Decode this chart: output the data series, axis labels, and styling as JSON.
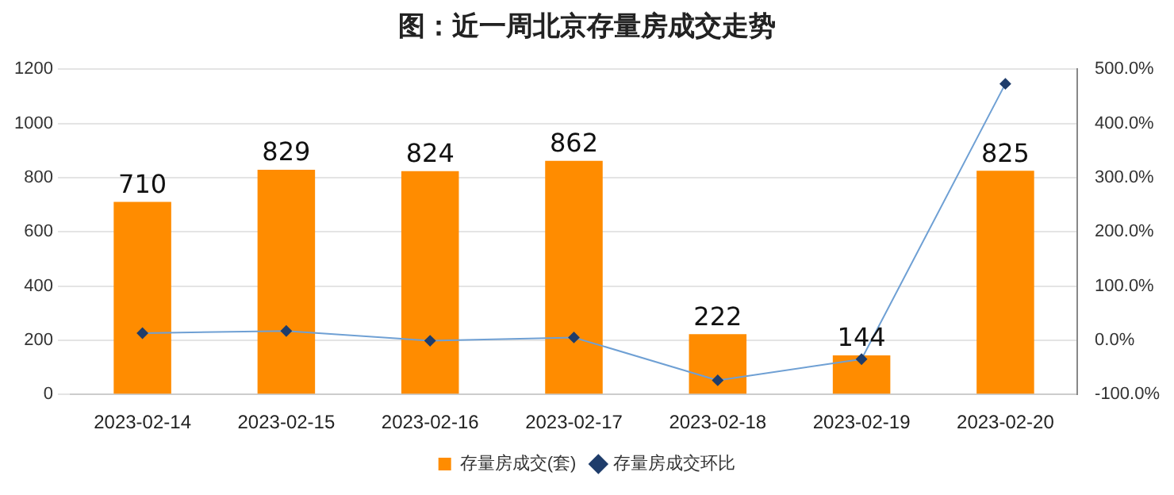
{
  "chart_data": {
    "type": "bar",
    "title": "图：近一周北京存量房成交走势",
    "categories": [
      "2023-02-14",
      "2023-02-15",
      "2023-02-16",
      "2023-02-17",
      "2023-02-18",
      "2023-02-19",
      "2023-02-20"
    ],
    "series": [
      {
        "name": "存量房成交(套)",
        "color": "#ff8c00",
        "values": [
          710,
          829,
          824,
          862,
          222,
          144,
          825
        ],
        "value_labels": [
          "710",
          "829",
          "824",
          "862",
          "222",
          "144",
          "825"
        ]
      },
      {
        "name": "存量房成交环比",
        "type": "line",
        "axis": "y2",
        "color": "#6fa0d4",
        "values": [
          13,
          17,
          -1,
          5,
          -74,
          -35,
          473
        ]
      }
    ],
    "ylim": [
      0,
      1200
    ],
    "yticks": [
      0,
      200,
      400,
      600,
      800,
      1000,
      1200
    ],
    "y2lim": [
      -100,
      500
    ],
    "y2ticks": [
      {
        "value": -100,
        "label": "-100.0%"
      },
      {
        "value": 0,
        "label": "0.0%"
      },
      {
        "value": 100,
        "label": "100.0%"
      },
      {
        "value": 200,
        "label": "200.0%"
      },
      {
        "value": 300,
        "label": "300.0%"
      },
      {
        "value": 400,
        "label": "400.0%"
      },
      {
        "value": 500,
        "label": "500.0%"
      }
    ],
    "grid": "y",
    "legend": "bottom",
    "marker": "diamond"
  }
}
